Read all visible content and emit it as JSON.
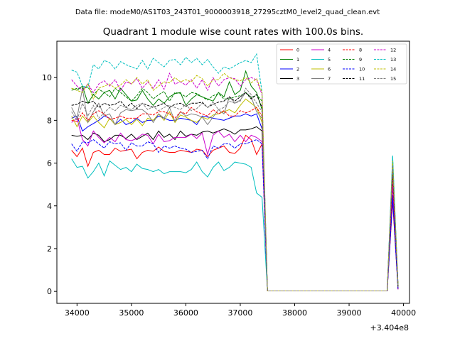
{
  "suptitle": "Data file: modeM0/AS1T03_243T01_9000003918_27295cztM0_level2_quad_clean.evt",
  "chart_data": {
    "type": "line",
    "title": "Quadrant 1 module wise count rates with 100.0s bins.",
    "xlabel": "",
    "ylabel": "",
    "x_offset_label": "+3.404e8",
    "xlim": [
      33630,
      40110
    ],
    "ylim": [
      -0.56,
      11.7
    ],
    "xticks": [
      34000,
      35000,
      36000,
      37000,
      38000,
      39000,
      40000
    ],
    "xtick_labels": [
      "34000",
      "35000",
      "36000",
      "37000",
      "38000",
      "39000",
      "40000"
    ],
    "yticks": [
      0,
      2,
      4,
      6,
      8,
      10
    ],
    "ytick_labels": [
      "0",
      "2",
      "4",
      "6",
      "8",
      "10"
    ],
    "x_start": 33900,
    "x_step": 100,
    "legend_position": "upper right",
    "legend_columns": 4,
    "series": [
      {
        "name": "0",
        "color": "#ff0000",
        "dash": "solid",
        "values": [
          6.6,
          6.3,
          6.7,
          5.85,
          6.5,
          6.6,
          6.4,
          6.4,
          6.7,
          6.55,
          6.6,
          6.65,
          6.2,
          6.5,
          6.6,
          6.55,
          6.75,
          6.55,
          6.5,
          6.5,
          6.6,
          6.55,
          6.5,
          6.65,
          6.6,
          6.3,
          6.6,
          6.7,
          6.8,
          6.5,
          6.45,
          6.7,
          7.3,
          7.1,
          6.4,
          6.9,
          0.02,
          0.02,
          0.02,
          0.02,
          0.02,
          0.02,
          0.02,
          0.02,
          0.02,
          0.02,
          0.02,
          0.02,
          0.02,
          0.02,
          0.02,
          0.02,
          0.02,
          0.02,
          0.02,
          0.02,
          0.02,
          0.02,
          0.02,
          4.2,
          0.1
        ]
      },
      {
        "name": "1",
        "color": "#008000",
        "dash": "solid",
        "values": [
          9.5,
          9.4,
          9.6,
          8.8,
          9.2,
          9.0,
          9.3,
          9.4,
          9.0,
          9.5,
          9.2,
          8.9,
          8.95,
          9.4,
          9.0,
          8.7,
          9.0,
          8.8,
          9.1,
          9.25,
          9.3,
          8.7,
          9.0,
          9.2,
          9.1,
          9.0,
          8.9,
          9.3,
          9.1,
          9.8,
          9.2,
          9.4,
          10.3,
          9.6,
          9.3,
          8.5,
          0.02,
          0.02,
          0.02,
          0.02,
          0.02,
          0.02,
          0.02,
          0.02,
          0.02,
          0.02,
          0.02,
          0.02,
          0.02,
          0.02,
          0.02,
          0.02,
          0.02,
          0.02,
          0.02,
          0.02,
          0.02,
          0.02,
          0.02,
          5.6,
          0.2
        ]
      },
      {
        "name": "2",
        "color": "#0000ff",
        "dash": "solid",
        "values": [
          8.1,
          8.2,
          7.5,
          7.7,
          7.85,
          8.0,
          8.2,
          8.1,
          7.8,
          8.05,
          7.8,
          7.9,
          8.1,
          7.9,
          8.0,
          8.0,
          8.2,
          8.1,
          8.0,
          8.0,
          8.1,
          8.05,
          8.0,
          7.8,
          8.2,
          8.15,
          8.1,
          8.05,
          8.0,
          8.1,
          8.2,
          8.2,
          8.3,
          8.2,
          8.3,
          7.6,
          0.02,
          0.02,
          0.02,
          0.02,
          0.02,
          0.02,
          0.02,
          0.02,
          0.02,
          0.02,
          0.02,
          0.02,
          0.02,
          0.02,
          0.02,
          0.02,
          0.02,
          0.02,
          0.02,
          0.02,
          0.02,
          0.02,
          0.02,
          4.5,
          0.1
        ]
      },
      {
        "name": "3",
        "color": "#000000",
        "dash": "solid",
        "values": [
          7.3,
          7.25,
          7.3,
          7.1,
          7.4,
          7.3,
          7.0,
          7.1,
          7.3,
          7.3,
          7.15,
          7.35,
          7.1,
          7.25,
          7.4,
          7.1,
          7.5,
          7.2,
          7.35,
          7.1,
          7.5,
          7.25,
          7.35,
          7.3,
          7.45,
          7.5,
          7.4,
          7.5,
          7.6,
          7.5,
          7.35,
          7.55,
          7.55,
          7.6,
          7.7,
          7.5,
          0.02,
          0.02,
          0.02,
          0.02,
          0.02,
          0.02,
          0.02,
          0.02,
          0.02,
          0.02,
          0.02,
          0.02,
          0.02,
          0.02,
          0.02,
          0.02,
          0.02,
          0.02,
          0.02,
          0.02,
          0.02,
          0.02,
          0.02,
          5.0,
          0.1
        ]
      },
      {
        "name": "4",
        "color": "#cc00cc",
        "dash": "solid",
        "values": [
          7.9,
          8.1,
          7.1,
          6.8,
          7.5,
          7.2,
          6.95,
          7.2,
          7.0,
          7.4,
          7.1,
          7.05,
          7.15,
          7.35,
          7.3,
          6.9,
          7.35,
          7.0,
          7.05,
          7.2,
          7.2,
          7.2,
          7.35,
          7.15,
          7.4,
          6.4,
          7.3,
          7.5,
          7.2,
          7.35,
          7.0,
          7.3,
          7.0,
          7.3,
          7.2,
          7.0,
          0.02,
          0.02,
          0.02,
          0.02,
          0.02,
          0.02,
          0.02,
          0.02,
          0.02,
          0.02,
          0.02,
          0.02,
          0.02,
          0.02,
          0.02,
          0.02,
          0.02,
          0.02,
          0.02,
          0.02,
          0.02,
          0.02,
          0.02,
          5.0,
          0.1
        ]
      },
      {
        "name": "5",
        "color": "#00bfbf",
        "dash": "solid",
        "values": [
          6.2,
          5.8,
          5.85,
          5.3,
          5.6,
          6.0,
          5.4,
          6.1,
          5.9,
          5.7,
          5.8,
          5.6,
          5.95,
          5.75,
          5.7,
          5.6,
          5.7,
          5.5,
          5.6,
          5.6,
          5.6,
          5.55,
          5.7,
          6.05,
          5.6,
          5.35,
          5.8,
          6.05,
          5.65,
          5.8,
          6.05,
          6.0,
          5.95,
          5.8,
          4.6,
          4.4,
          0.02,
          0.02,
          0.02,
          0.02,
          0.02,
          0.02,
          0.02,
          0.02,
          0.02,
          0.02,
          0.02,
          0.02,
          0.02,
          0.02,
          0.02,
          0.02,
          0.02,
          0.02,
          0.02,
          0.02,
          0.02,
          0.02,
          0.02,
          6.35,
          0.2
        ]
      },
      {
        "name": "6",
        "color": "#bfbf00",
        "dash": "solid",
        "values": [
          8.2,
          7.7,
          8.2,
          7.9,
          8.2,
          7.9,
          7.65,
          8.1,
          7.8,
          7.9,
          8.05,
          7.8,
          8.05,
          7.75,
          8.1,
          8.0,
          8.3,
          8.0,
          8.4,
          7.9,
          8.25,
          8.15,
          8.0,
          7.9,
          8.15,
          8.05,
          8.25,
          8.3,
          8.4,
          8.5,
          8.35,
          8.7,
          9.0,
          8.8,
          8.6,
          7.9,
          0.02,
          0.02,
          0.02,
          0.02,
          0.02,
          0.02,
          0.02,
          0.02,
          0.02,
          0.02,
          0.02,
          0.02,
          0.02,
          0.02,
          0.02,
          0.02,
          0.02,
          0.02,
          0.02,
          0.02,
          0.02,
          0.02,
          0.02,
          5.8,
          0.2
        ]
      },
      {
        "name": "7",
        "color": "#808080",
        "dash": "solid",
        "values": [
          8.6,
          8.1,
          9.5,
          7.9,
          8.4,
          8.8,
          8.2,
          8.3,
          7.8,
          8.35,
          8.5,
          8.45,
          8.5,
          8.5,
          8.3,
          7.9,
          8.3,
          8.1,
          8.6,
          7.95,
          8.4,
          8.2,
          8.3,
          8.25,
          8.15,
          7.8,
          8.15,
          8.5,
          8.3,
          9.1,
          8.8,
          8.95,
          9.3,
          9.1,
          8.4,
          8.1,
          0.02,
          0.02,
          0.02,
          0.02,
          0.02,
          0.02,
          0.02,
          0.02,
          0.02,
          0.02,
          0.02,
          0.02,
          0.02,
          0.02,
          0.02,
          0.02,
          0.02,
          0.02,
          0.02,
          0.02,
          0.02,
          0.02,
          0.02,
          5.9,
          0.2
        ]
      },
      {
        "name": "8",
        "color": "#ff0000",
        "dash": "dashed",
        "values": [
          8.0,
          7.95,
          8.35,
          8.0,
          8.3,
          8.45,
          8.3,
          8.05,
          8.1,
          8.2,
          8.1,
          8.1,
          8.1,
          8.3,
          8.3,
          8.25,
          8.4,
          8.4,
          8.3,
          8.1,
          8.4,
          8.3,
          8.6,
          8.4,
          8.3,
          8.2,
          8.5,
          8.3,
          8.45,
          8.2,
          8.2,
          8.45,
          8.35,
          8.45,
          8.6,
          8.2,
          0.02,
          0.02,
          0.02,
          0.02,
          0.02,
          0.02,
          0.02,
          0.02,
          0.02,
          0.02,
          0.02,
          0.02,
          0.02,
          0.02,
          0.02,
          0.02,
          0.02,
          0.02,
          0.02,
          0.02,
          0.02,
          0.02,
          0.02,
          5.4,
          0.2
        ]
      },
      {
        "name": "9",
        "color": "#008000",
        "dash": "dashed",
        "values": [
          9.4,
          9.5,
          9.5,
          9.55,
          9.2,
          9.45,
          9.3,
          9.1,
          9.5,
          9.3,
          9.1,
          8.9,
          9.15,
          9.5,
          9.3,
          9.0,
          9.2,
          9.35,
          8.9,
          9.3,
          9.25,
          9.1,
          9.3,
          9.25,
          9.1,
          8.95,
          9.15,
          9.25,
          9.0,
          9.0,
          9.1,
          9.15,
          9.3,
          9.05,
          9.2,
          8.9,
          0.02,
          0.02,
          0.02,
          0.02,
          0.02,
          0.02,
          0.02,
          0.02,
          0.02,
          0.02,
          0.02,
          0.02,
          0.02,
          0.02,
          0.02,
          0.02,
          0.02,
          0.02,
          0.02,
          0.02,
          0.02,
          0.02,
          0.02,
          6.0,
          0.3
        ]
      },
      {
        "name": "10",
        "color": "#0000ff",
        "dash": "dashed",
        "values": [
          6.9,
          6.55,
          7.0,
          6.95,
          7.1,
          6.9,
          6.7,
          7.0,
          6.9,
          6.95,
          6.6,
          6.95,
          6.8,
          6.8,
          7.0,
          6.9,
          6.5,
          6.8,
          6.7,
          6.8,
          6.7,
          6.65,
          6.5,
          6.55,
          6.6,
          6.2,
          6.8,
          6.7,
          6.9,
          6.9,
          6.7,
          6.9,
          6.9,
          7.0,
          7.1,
          6.9,
          0.02,
          0.02,
          0.02,
          0.02,
          0.02,
          0.02,
          0.02,
          0.02,
          0.02,
          0.02,
          0.02,
          0.02,
          0.02,
          0.02,
          0.02,
          0.02,
          0.02,
          0.02,
          0.02,
          0.02,
          0.02,
          0.02,
          0.02,
          4.3,
          0.1
        ]
      },
      {
        "name": "11",
        "color": "#000000",
        "dash": "dashed",
        "values": [
          8.7,
          8.75,
          8.9,
          8.8,
          8.9,
          8.6,
          8.8,
          8.7,
          8.75,
          8.9,
          8.6,
          8.8,
          8.55,
          8.8,
          8.7,
          8.6,
          8.7,
          8.8,
          8.6,
          8.75,
          8.8,
          8.65,
          8.8,
          8.8,
          8.85,
          8.6,
          8.75,
          8.85,
          8.9,
          9.1,
          8.9,
          9.1,
          9.3,
          9.0,
          9.2,
          8.6,
          0.02,
          0.02,
          0.02,
          0.02,
          0.02,
          0.02,
          0.02,
          0.02,
          0.02,
          0.02,
          0.02,
          0.02,
          0.02,
          0.02,
          0.02,
          0.02,
          0.02,
          0.02,
          0.02,
          0.02,
          0.02,
          0.02,
          0.02,
          5.7,
          0.2
        ]
      },
      {
        "name": "12",
        "color": "#cc00cc",
        "dash": "dashed",
        "values": [
          9.9,
          9.6,
          9.4,
          9.7,
          9.3,
          9.7,
          9.85,
          9.6,
          9.9,
          9.4,
          9.8,
          9.7,
          9.95,
          9.5,
          9.8,
          9.5,
          9.9,
          9.45,
          10.2,
          9.7,
          9.8,
          9.65,
          9.9,
          9.5,
          9.9,
          9.4,
          10.0,
          9.6,
          9.9,
          10.0,
          9.95,
          9.6,
          9.9,
          10.0,
          9.9,
          9.2,
          0.02,
          0.02,
          0.02,
          0.02,
          0.02,
          0.02,
          0.02,
          0.02,
          0.02,
          0.02,
          0.02,
          0.02,
          0.02,
          0.02,
          0.02,
          0.02,
          0.02,
          0.02,
          0.02,
          0.02,
          0.02,
          0.02,
          0.02,
          6.0,
          0.3
        ]
      },
      {
        "name": "13",
        "color": "#00bfbf",
        "dash": "dashed",
        "values": [
          10.35,
          10.25,
          9.6,
          9.55,
          10.6,
          10.4,
          10.8,
          10.7,
          10.4,
          10.75,
          10.6,
          10.5,
          10.4,
          10.8,
          10.4,
          10.9,
          10.7,
          10.5,
          10.8,
          10.85,
          10.6,
          10.95,
          10.7,
          10.9,
          10.6,
          10.85,
          10.5,
          10.2,
          10.5,
          10.4,
          10.55,
          10.7,
          10.8,
          10.7,
          11.1,
          9.3,
          0.02,
          0.02,
          0.02,
          0.02,
          0.02,
          0.02,
          0.02,
          0.02,
          0.02,
          0.02,
          0.02,
          0.02,
          0.02,
          0.02,
          0.02,
          0.02,
          0.02,
          0.02,
          0.02,
          0.02,
          0.02,
          0.02,
          0.02,
          6.3,
          0.3
        ]
      },
      {
        "name": "14",
        "color": "#bfbf00",
        "dash": "dashed",
        "values": [
          9.5,
          9.4,
          9.3,
          9.7,
          9.0,
          9.5,
          9.6,
          9.7,
          9.5,
          9.65,
          9.9,
          9.7,
          10.0,
          9.7,
          9.9,
          9.4,
          9.6,
          9.8,
          9.75,
          10.0,
          9.8,
          9.9,
          9.8,
          10.1,
          9.95,
          9.6,
          9.9,
          9.9,
          10.2,
          10.0,
          9.9,
          9.85,
          10.0,
          9.75,
          9.95,
          9.3,
          0.02,
          0.02,
          0.02,
          0.02,
          0.02,
          0.02,
          0.02,
          0.02,
          0.02,
          0.02,
          0.02,
          0.02,
          0.02,
          0.02,
          0.02,
          0.02,
          0.02,
          0.02,
          0.02,
          0.02,
          0.02,
          0.02,
          0.02,
          6.1,
          0.3
        ]
      },
      {
        "name": "15",
        "color": "#808080",
        "dash": "dashed",
        "values": [
          8.4,
          8.0,
          8.8,
          8.2,
          8.7,
          8.1,
          8.35,
          8.6,
          8.45,
          8.7,
          8.6,
          8.5,
          8.7,
          8.8,
          8.5,
          8.65,
          8.45,
          8.6,
          8.7,
          8.6,
          8.5,
          8.75,
          8.45,
          8.55,
          8.8,
          8.6,
          8.85,
          8.5,
          8.6,
          8.9,
          8.8,
          8.9,
          9.5,
          9.2,
          8.8,
          8.4,
          0.02,
          0.02,
          0.02,
          0.02,
          0.02,
          0.02,
          0.02,
          0.02,
          0.02,
          0.02,
          0.02,
          0.02,
          0.02,
          0.02,
          0.02,
          0.02,
          0.02,
          0.02,
          0.02,
          0.02,
          0.02,
          0.02,
          0.02,
          5.9,
          0.2
        ]
      }
    ]
  }
}
